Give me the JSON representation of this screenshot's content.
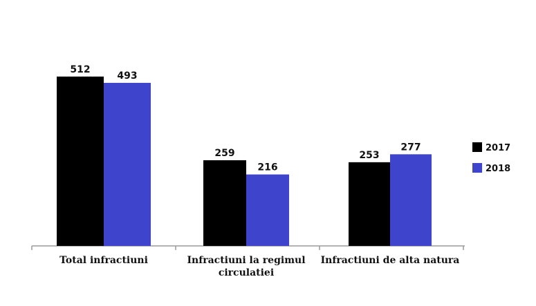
{
  "chart_data": {
    "type": "bar",
    "categories": [
      [
        "Total infractiuni"
      ],
      [
        "Infractiuni la regimul",
        "circulatiei"
      ],
      [
        "Infractiuni de alta natura"
      ]
    ],
    "series": [
      {
        "name": "2017",
        "values": [
          512,
          259,
          253
        ],
        "color": "#000000"
      },
      {
        "name": "2018",
        "values": [
          493,
          216,
          277
        ],
        "color": "#3f44cc"
      }
    ],
    "ylim": [
      0,
      520
    ],
    "grid": false,
    "legend": "right",
    "data_labels": true
  }
}
